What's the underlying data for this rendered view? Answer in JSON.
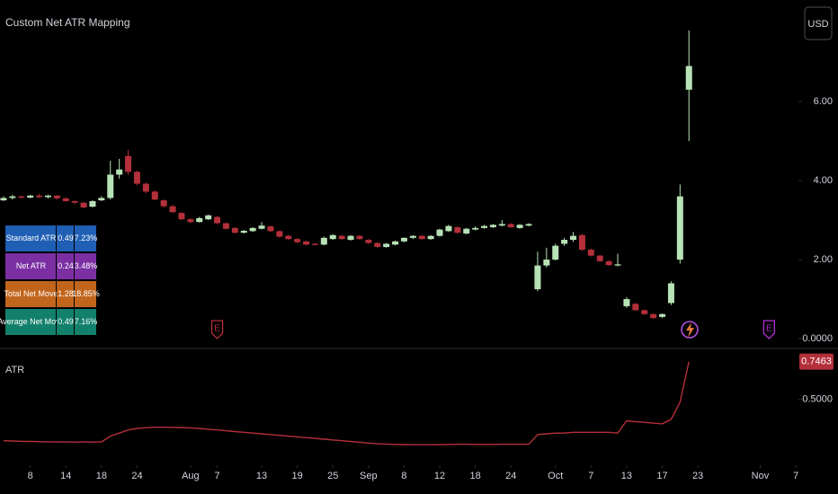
{
  "chart_data": [
    {
      "type": "candlestick",
      "title": "Custom Net ATR Mapping",
      "currency": "USD",
      "up_color": "#b7e2b6",
      "down_color": "#b3303a",
      "xlim": [
        -0.4,
        89.3
      ],
      "ylim": [
        -0.25,
        8.57
      ],
      "yticks": [
        {
          "value": 0,
          "label": "0.0000"
        },
        {
          "value": 2,
          "label": "2.00"
        },
        {
          "value": 4,
          "label": "4.00"
        },
        {
          "value": 6,
          "label": "6.00"
        }
      ],
      "xticks": [
        {
          "value": 3,
          "label": "8"
        },
        {
          "value": 7,
          "label": "14"
        },
        {
          "value": 11,
          "label": "18"
        },
        {
          "value": 15,
          "label": "24"
        },
        {
          "value": 21,
          "label": "Aug"
        },
        {
          "value": 24,
          "label": "7"
        },
        {
          "value": 29,
          "label": "13"
        },
        {
          "value": 33,
          "label": "19"
        },
        {
          "value": 37,
          "label": "25"
        },
        {
          "value": 41,
          "label": "Sep"
        },
        {
          "value": 45,
          "label": "8"
        },
        {
          "value": 49,
          "label": "12"
        },
        {
          "value": 53,
          "label": "18"
        },
        {
          "value": 57,
          "label": "24"
        },
        {
          "value": 62,
          "label": "Oct"
        },
        {
          "value": 66,
          "label": "7"
        },
        {
          "value": 70,
          "label": "13"
        },
        {
          "value": 74,
          "label": "17"
        },
        {
          "value": 78,
          "label": "23"
        },
        {
          "value": 85,
          "label": "Nov"
        },
        {
          "value": 89,
          "label": "7"
        }
      ],
      "events": [
        {
          "x": 24,
          "label": "E",
          "color": "#b3303a"
        },
        {
          "x": 86,
          "label": "E",
          "color": "#b12fd0"
        }
      ],
      "ohlc": [
        [
          3.5,
          3.6,
          3.48,
          3.56
        ],
        [
          3.56,
          3.64,
          3.52,
          3.6
        ],
        [
          3.6,
          3.62,
          3.54,
          3.57
        ],
        [
          3.57,
          3.64,
          3.55,
          3.62
        ],
        [
          3.62,
          3.66,
          3.56,
          3.58
        ],
        [
          3.58,
          3.64,
          3.55,
          3.62
        ],
        [
          3.62,
          3.63,
          3.52,
          3.55
        ],
        [
          3.55,
          3.58,
          3.46,
          3.48
        ],
        [
          3.48,
          3.5,
          3.4,
          3.44
        ],
        [
          3.44,
          3.46,
          3.3,
          3.32
        ],
        [
          3.34,
          3.5,
          3.32,
          3.48
        ],
        [
          3.5,
          3.6,
          3.48,
          3.56
        ],
        [
          3.56,
          4.5,
          3.52,
          4.15
        ],
        [
          4.15,
          4.55,
          4.05,
          4.28
        ],
        [
          4.62,
          4.78,
          4.15,
          4.22
        ],
        [
          4.22,
          4.25,
          3.88,
          3.92
        ],
        [
          3.92,
          3.95,
          3.68,
          3.72
        ],
        [
          3.72,
          3.75,
          3.5,
          3.52
        ],
        [
          3.5,
          3.52,
          3.32,
          3.35
        ],
        [
          3.35,
          3.38,
          3.18,
          3.2
        ],
        [
          3.18,
          3.2,
          3.0,
          3.02
        ],
        [
          3.02,
          3.05,
          2.92,
          2.95
        ],
        [
          2.95,
          3.08,
          2.94,
          3.05
        ],
        [
          3.02,
          3.14,
          3.0,
          3.12
        ],
        [
          3.08,
          3.1,
          2.9,
          2.92
        ],
        [
          2.92,
          2.94,
          2.76,
          2.78
        ],
        [
          2.8,
          2.82,
          2.66,
          2.68
        ],
        [
          2.68,
          2.75,
          2.66,
          2.73
        ],
        [
          2.72,
          2.82,
          2.7,
          2.8
        ],
        [
          2.78,
          2.95,
          2.76,
          2.86
        ],
        [
          2.84,
          2.86,
          2.7,
          2.72
        ],
        [
          2.72,
          2.74,
          2.56,
          2.58
        ],
        [
          2.6,
          2.62,
          2.5,
          2.52
        ],
        [
          2.52,
          2.54,
          2.42,
          2.44
        ],
        [
          2.46,
          2.48,
          2.36,
          2.38
        ],
        [
          2.4,
          2.42,
          2.36,
          2.37
        ],
        [
          2.38,
          2.58,
          2.36,
          2.55
        ],
        [
          2.52,
          2.64,
          2.5,
          2.62
        ],
        [
          2.6,
          2.62,
          2.5,
          2.52
        ],
        [
          2.5,
          2.62,
          2.48,
          2.6
        ],
        [
          2.6,
          2.62,
          2.5,
          2.52
        ],
        [
          2.5,
          2.52,
          2.4,
          2.42
        ],
        [
          2.42,
          2.44,
          2.3,
          2.32
        ],
        [
          2.32,
          2.42,
          2.3,
          2.4
        ],
        [
          2.38,
          2.48,
          2.36,
          2.46
        ],
        [
          2.46,
          2.56,
          2.44,
          2.55
        ],
        [
          2.55,
          2.62,
          2.52,
          2.6
        ],
        [
          2.6,
          2.62,
          2.5,
          2.52
        ],
        [
          2.52,
          2.62,
          2.5,
          2.6
        ],
        [
          2.6,
          2.78,
          2.58,
          2.76
        ],
        [
          2.72,
          2.88,
          2.7,
          2.85
        ],
        [
          2.82,
          2.84,
          2.66,
          2.68
        ],
        [
          2.66,
          2.8,
          2.64,
          2.78
        ],
        [
          2.76,
          2.84,
          2.74,
          2.8
        ],
        [
          2.8,
          2.88,
          2.78,
          2.85
        ],
        [
          2.82,
          2.9,
          2.8,
          2.88
        ],
        [
          2.86,
          3.0,
          2.84,
          2.9
        ],
        [
          2.9,
          2.92,
          2.8,
          2.82
        ],
        [
          2.8,
          2.9,
          2.78,
          2.88
        ],
        [
          2.86,
          2.92,
          2.84,
          2.9
        ],
        [
          1.25,
          2.2,
          1.2,
          1.85
        ],
        [
          1.85,
          2.3,
          1.8,
          2.0
        ],
        [
          2.0,
          2.4,
          1.98,
          2.35
        ],
        [
          2.4,
          2.55,
          2.35,
          2.5
        ],
        [
          2.5,
          2.7,
          2.45,
          2.6
        ],
        [
          2.62,
          2.65,
          2.22,
          2.25
        ],
        [
          2.25,
          2.28,
          2.08,
          2.1
        ],
        [
          2.1,
          2.12,
          1.94,
          1.96
        ],
        [
          1.96,
          1.98,
          1.84,
          1.86
        ],
        [
          1.85,
          2.15,
          1.83,
          1.88
        ],
        [
          0.82,
          1.05,
          0.78,
          1.0
        ],
        [
          0.88,
          0.9,
          0.7,
          0.72
        ],
        [
          0.72,
          0.74,
          0.6,
          0.62
        ],
        [
          0.62,
          0.64,
          0.5,
          0.52
        ],
        [
          0.55,
          0.64,
          0.52,
          0.62
        ],
        [
          0.9,
          1.45,
          0.85,
          1.4
        ],
        [
          2.0,
          3.9,
          1.9,
          3.6
        ],
        [
          6.3,
          7.8,
          5.0,
          6.9
        ]
      ]
    },
    {
      "type": "line",
      "title": "ATR",
      "color": "#b3303a",
      "xlim": [
        -0.4,
        89.3
      ],
      "ylim": [
        0.07,
        0.82
      ],
      "yticks": [
        {
          "value": 0.5,
          "label": "0.5000"
        }
      ],
      "values": [
        0.23,
        0.228,
        0.226,
        0.225,
        0.224,
        0.223,
        0.222,
        0.222,
        0.221,
        0.222,
        0.221,
        0.223,
        0.26,
        0.28,
        0.3,
        0.31,
        0.315,
        0.318,
        0.318,
        0.317,
        0.316,
        0.314,
        0.31,
        0.305,
        0.3,
        0.295,
        0.29,
        0.285,
        0.28,
        0.275,
        0.27,
        0.265,
        0.26,
        0.255,
        0.25,
        0.245,
        0.24,
        0.235,
        0.23,
        0.225,
        0.22,
        0.215,
        0.21,
        0.208,
        0.206,
        0.205,
        0.204,
        0.204,
        0.204,
        0.205,
        0.206,
        0.207,
        0.207,
        0.206,
        0.206,
        0.206,
        0.207,
        0.207,
        0.207,
        0.207,
        0.27,
        0.275,
        0.28,
        0.28,
        0.285,
        0.285,
        0.285,
        0.285,
        0.285,
        0.28,
        0.36,
        0.355,
        0.35,
        0.345,
        0.34,
        0.37,
        0.48,
        0.7463
      ]
    }
  ],
  "table": {
    "colors": [
      "#1f5fb4",
      "#7b2fa3",
      "#c2651c",
      "#12806b"
    ],
    "rows": [
      [
        "Standard ATR",
        "0.49",
        "7.23%"
      ],
      [
        "Net ATR",
        "0.24",
        "3.48%"
      ],
      [
        "Total Net Move",
        "1.28",
        "18.85%"
      ],
      [
        "Average Net Move",
        "0.49",
        "7.16%"
      ]
    ]
  }
}
